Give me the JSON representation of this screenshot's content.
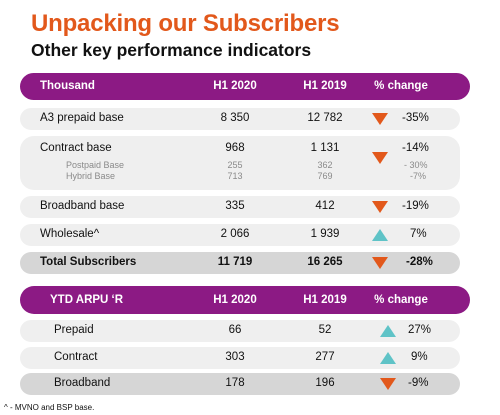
{
  "title": "Unpacking our Subscribers",
  "subtitle": "Other key performance indicators",
  "table1": {
    "headers": [
      "Thousand",
      "H1 2020",
      "H1 2019",
      "% change"
    ],
    "rows": [
      {
        "label": "A3 prepaid base",
        "h1_2020": "8 350",
        "h1_2019": "12 782",
        "change": "-35%",
        "trend": "down"
      },
      {
        "label": "Contract base",
        "h1_2020": "968",
        "h1_2019": "1 131",
        "change": "-14%",
        "trend": "down",
        "sub": [
          {
            "label": "Postpaid Base",
            "h1_2020": "255",
            "h1_2019": "362",
            "change": "- 30%"
          },
          {
            "label": "Hybrid Base",
            "h1_2020": "713",
            "h1_2019": "769",
            "change": "-7%"
          }
        ]
      },
      {
        "label": "Broadband base",
        "h1_2020": "335",
        "h1_2019": "412",
        "change": "-19%",
        "trend": "down"
      },
      {
        "label": "Wholesale^",
        "h1_2020": "2 066",
        "h1_2019": "1 939",
        "change": "7%",
        "trend": "up"
      },
      {
        "label": "Total Subscribers",
        "h1_2020": "11 719",
        "h1_2019": "16 265",
        "change": "-28%",
        "trend": "down"
      }
    ]
  },
  "table2": {
    "headers": [
      "YTD ARPU ‘R",
      "H1 2020",
      "H1 2019",
      "% change"
    ],
    "rows": [
      {
        "label": "Prepaid",
        "h1_2020": "66",
        "h1_2019": "52",
        "change": "27%",
        "trend": "up"
      },
      {
        "label": "Contract",
        "h1_2020": "303",
        "h1_2019": "277",
        "change": "9%",
        "trend": "up"
      },
      {
        "label": "Broadband",
        "h1_2020": "178",
        "h1_2019": "196",
        "change": "-9%",
        "trend": "down"
      }
    ]
  },
  "footnote": "^ - MVNO and BSP base.",
  "colors": {
    "accent": "#e2581b",
    "header": "#8c1a84",
    "up": "#5fc3c7",
    "down": "#e2581b",
    "row": "#efefef",
    "row_dark": "#d6d6d6"
  }
}
